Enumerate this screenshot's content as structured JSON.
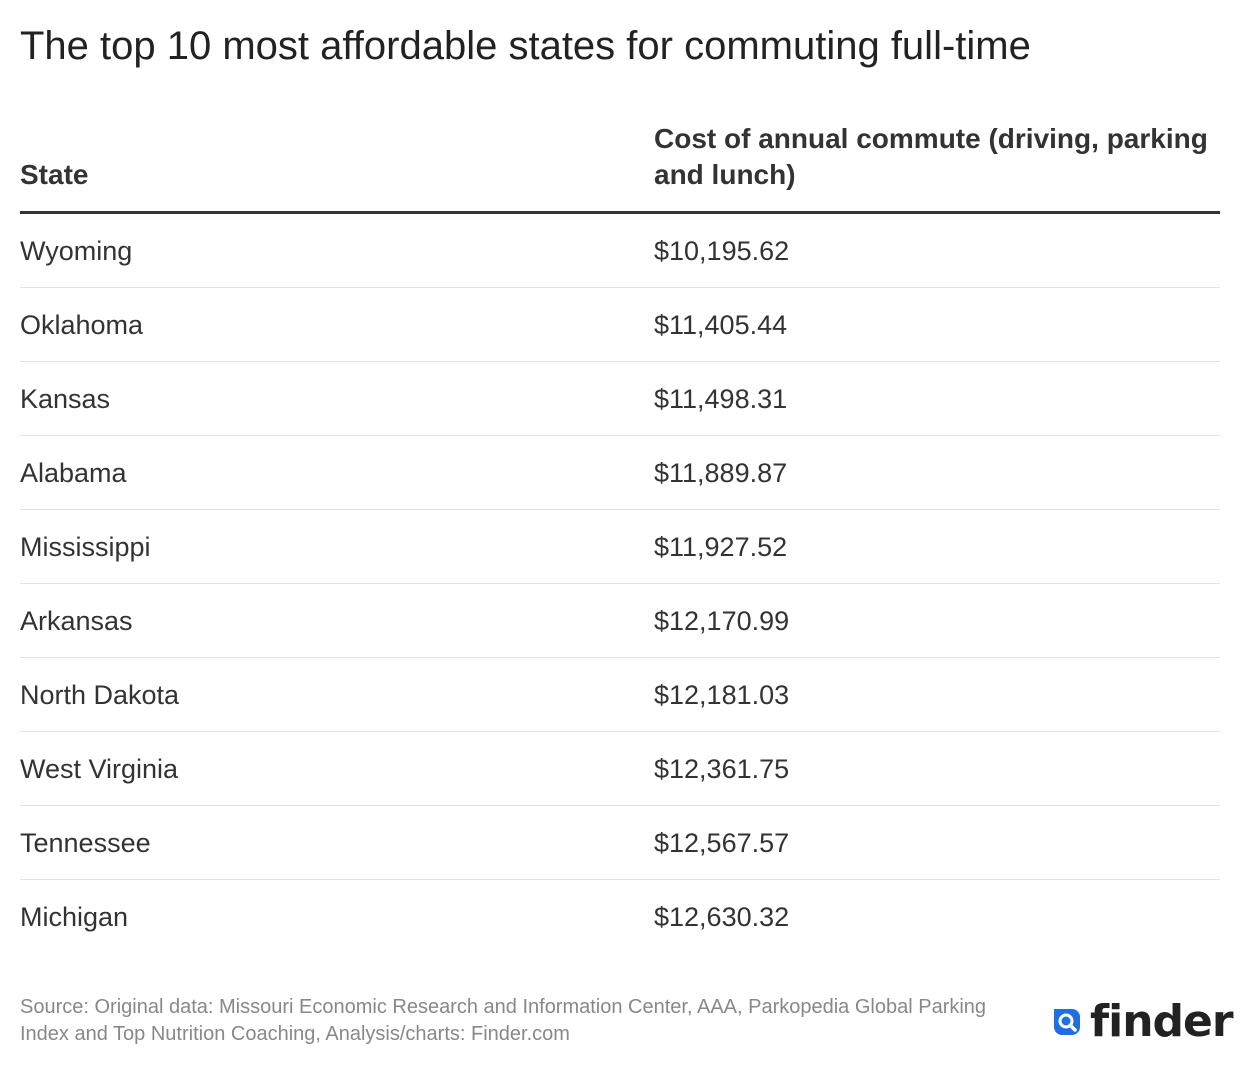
{
  "title": "The top 10 most affordable states for commuting full-time",
  "chart_data": {
    "type": "table",
    "title": "The top 10 most affordable states for commuting full-time",
    "columns": [
      "State",
      "Cost of annual commute (driving, parking and lunch)"
    ],
    "rows": [
      {
        "state": "Wyoming",
        "cost": "$10,195.62"
      },
      {
        "state": "Oklahoma",
        "cost": "$11,405.44"
      },
      {
        "state": "Kansas",
        "cost": "$11,498.31"
      },
      {
        "state": "Alabama",
        "cost": "$11,889.87"
      },
      {
        "state": "Mississippi",
        "cost": "$11,927.52"
      },
      {
        "state": "Arkansas",
        "cost": "$12,170.99"
      },
      {
        "state": "North Dakota",
        "cost": "$12,181.03"
      },
      {
        "state": "West Virginia",
        "cost": "$12,361.75"
      },
      {
        "state": "Tennessee",
        "cost": "$12,567.57"
      },
      {
        "state": "Michigan",
        "cost": "$12,630.32"
      }
    ]
  },
  "footer": {
    "source": "Source: Original data: Missouri Economic Research and Information Center, AAA, Parkopedia Global Parking Index and Top Nutrition Coaching, Analysis/charts: Finder.com",
    "logo_text": "finder",
    "logo_icon": "search-magnifier-icon"
  },
  "colors": {
    "text": "#333333",
    "muted": "#888888",
    "rule": "#333333",
    "divider": "#e2e2e2",
    "brand": "#1f6fe0"
  }
}
